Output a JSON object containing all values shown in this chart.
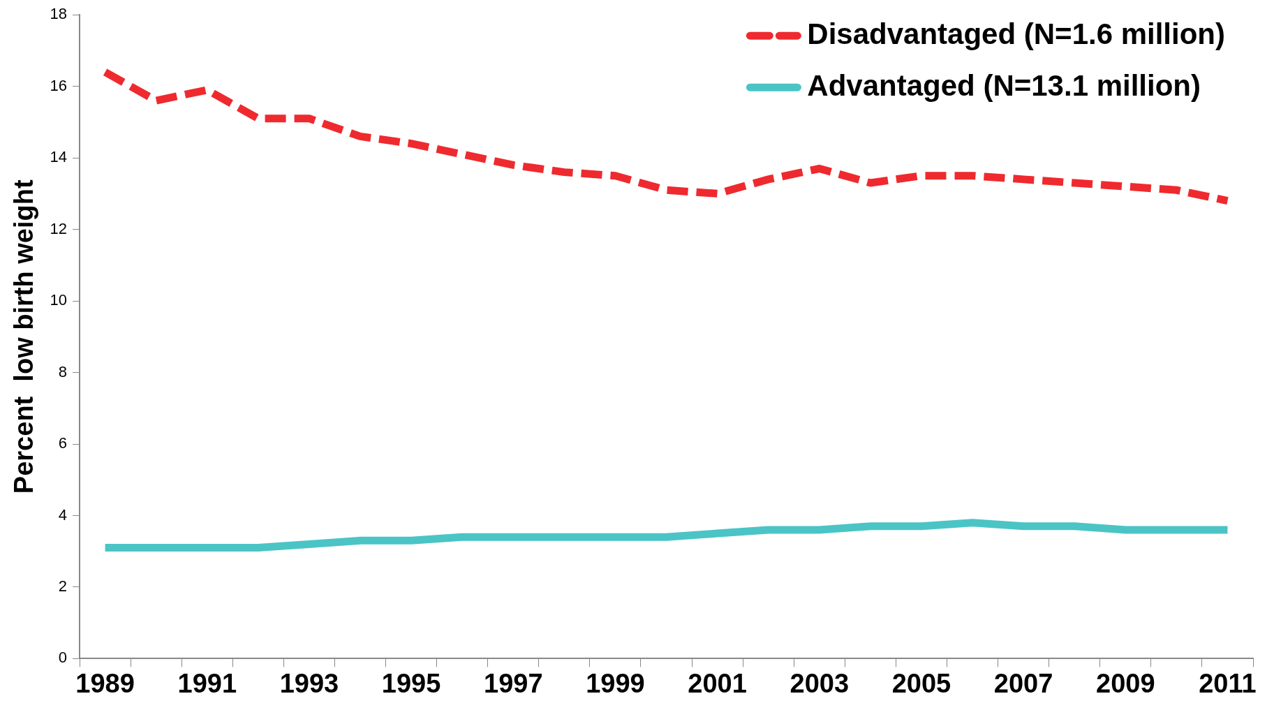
{
  "chart_data": {
    "type": "line",
    "ylabel": "Percent  low birth weight",
    "categories": [
      "1989",
      null,
      "1991",
      null,
      "1993",
      null,
      "1995",
      null,
      "1997",
      null,
      "1999",
      null,
      "2001",
      null,
      "2003",
      null,
      "2005",
      null,
      "2007",
      null,
      "2009",
      null,
      "2011"
    ],
    "series": [
      {
        "name": "Disadvantaged (N=1.6 million)",
        "color": "#ee2a2f",
        "line_style": "dashed",
        "values": [
          16.4,
          15.6,
          15.9,
          15.1,
          15.1,
          14.6,
          14.4,
          14.1,
          13.8,
          13.6,
          13.5,
          13.1,
          13.0,
          13.4,
          13.7,
          13.3,
          13.5,
          13.5,
          13.4,
          13.3,
          13.2,
          13.1,
          12.8
        ]
      },
      {
        "name": "Advantaged (N=13.1 million)",
        "color": "#4bc4c6",
        "line_style": "solid",
        "values": [
          3.1,
          3.1,
          3.1,
          3.1,
          3.2,
          3.3,
          3.3,
          3.4,
          3.4,
          3.4,
          3.4,
          3.4,
          3.5,
          3.6,
          3.6,
          3.7,
          3.7,
          3.8,
          3.7,
          3.7,
          3.6,
          3.6,
          3.6
        ]
      }
    ],
    "ylim": [
      0,
      18
    ],
    "yticks": [
      0,
      2,
      4,
      6,
      8,
      10,
      12,
      14,
      16,
      18
    ],
    "grid": false,
    "legend": "top right",
    "marker": "none"
  }
}
